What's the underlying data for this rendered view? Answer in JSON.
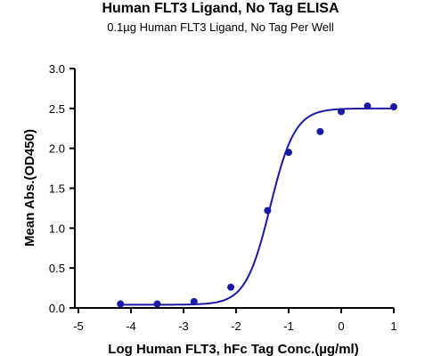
{
  "chart_data": {
    "type": "scatter",
    "title": "Human FLT3 Ligand, No Tag ELISA",
    "subtitle": "0.1µg Human FLT3 Ligand, No Tag Per Well",
    "xlabel": "Log Human FLT3, hFc Tag Conc.(µg/ml)",
    "ylabel": "Mean Abs.(OD450)",
    "xlim": [
      -5,
      1
    ],
    "ylim": [
      0,
      3.0
    ],
    "x_ticks": [
      "-5",
      "-4",
      "-3",
      "-2",
      "-1",
      "0",
      "1"
    ],
    "y_ticks": [
      "0.0",
      "0.5",
      "1.0",
      "1.5",
      "2.0",
      "2.5",
      "3.0"
    ],
    "grid": false,
    "color": "#1a1aa6",
    "series": [
      {
        "x": [
          -4.2,
          -3.5,
          -2.8,
          -2.1,
          -1.4,
          -1.0,
          -0.4,
          0.0,
          0.5,
          1.0
        ],
        "y": [
          0.05,
          0.05,
          0.08,
          0.26,
          1.22,
          1.95,
          2.21,
          2.46,
          2.53,
          2.52
        ],
        "fit": {
          "model": "4PL",
          "bottom": 0.04,
          "top": 2.5,
          "log_ec50": -1.35,
          "hill": 1.85,
          "x_range": [
            -4.2,
            1.0
          ]
        }
      }
    ]
  }
}
